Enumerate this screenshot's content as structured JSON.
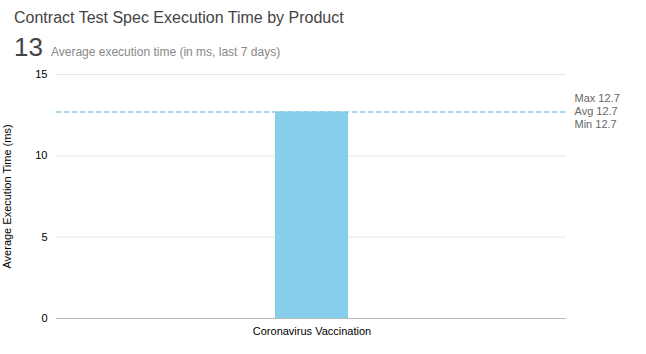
{
  "chart_data": {
    "type": "bar",
    "title": "Contract Test Spec Execution Time by Product",
    "subtitle": [
      "13",
      "Average execution time (in ms, last 7 days)"
    ],
    "categories": [
      "Coronavirus Vaccination"
    ],
    "values": [
      12.7
    ],
    "color": "#87CEEB",
    "avg_value": 12.7,
    "annotations": [
      "Max 12.7",
      "Avg 12.7",
      "Min 12.7"
    ],
    "ylabel": "Average Execution Time (ms)",
    "ylim": [
      0,
      15
    ],
    "yticks": [
      0,
      5,
      10,
      15
    ],
    "grid": true
  }
}
